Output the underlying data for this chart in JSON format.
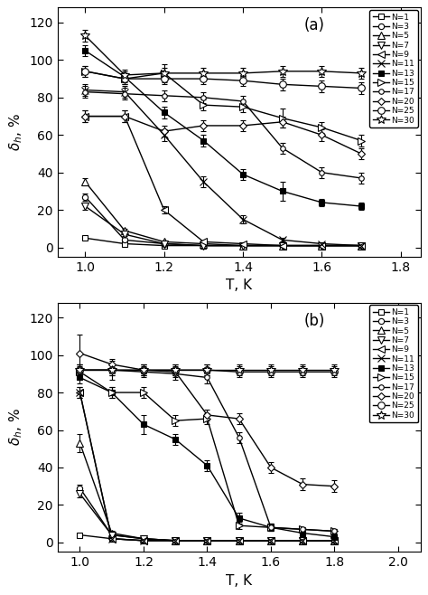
{
  "panel_a": {
    "label": "(a)",
    "xlim": [
      0.93,
      1.85
    ],
    "ylim": [
      -5,
      128
    ],
    "xticks": [
      1.0,
      1.2,
      1.4,
      1.6,
      1.8
    ],
    "yticks": [
      0,
      20,
      40,
      60,
      80,
      100,
      120
    ],
    "series": [
      {
        "N": 1,
        "marker": "s",
        "filled": false,
        "T": [
          1.0,
          1.1,
          1.2,
          1.3,
          1.4,
          1.5,
          1.6,
          1.7
        ],
        "val": [
          5,
          2,
          1,
          1,
          1,
          1,
          1,
          1
        ],
        "err": [
          0.5,
          0.3,
          0.3,
          0.3,
          0.3,
          0.3,
          0.3,
          0.3
        ]
      },
      {
        "N": 3,
        "marker": "o",
        "filled": false,
        "T": [
          1.0,
          1.1,
          1.2,
          1.3,
          1.4,
          1.5,
          1.6,
          1.7
        ],
        "val": [
          27,
          4,
          2,
          1,
          1,
          1,
          1,
          1
        ],
        "err": [
          2,
          0.5,
          0.3,
          0.3,
          0.3,
          0.3,
          0.3,
          0.3
        ]
      },
      {
        "N": 5,
        "marker": "^",
        "filled": false,
        "T": [
          1.0,
          1.1,
          1.2,
          1.3,
          1.4,
          1.5,
          1.6,
          1.7
        ],
        "val": [
          35,
          9,
          3,
          2,
          1,
          1,
          1,
          1
        ],
        "err": [
          2,
          1,
          0.5,
          0.3,
          0.3,
          0.3,
          0.3,
          0.3
        ]
      },
      {
        "N": 7,
        "marker": "v",
        "filled": false,
        "T": [
          1.0,
          1.1,
          1.2,
          1.3,
          1.4,
          1.5,
          1.6,
          1.7
        ],
        "val": [
          22,
          7,
          2,
          1,
          1,
          1,
          1,
          1
        ],
        "err": [
          2,
          1,
          0.3,
          0.3,
          0.3,
          0.3,
          0.3,
          0.3
        ]
      },
      {
        "N": 9,
        "marker": "<",
        "filled": false,
        "T": [
          1.0,
          1.1,
          1.2,
          1.3,
          1.4,
          1.5,
          1.6,
          1.7
        ],
        "val": [
          70,
          70,
          20,
          3,
          2,
          1,
          1,
          1
        ],
        "err": [
          3,
          3,
          2,
          0.5,
          0.3,
          0.3,
          0.3,
          0.3
        ]
      },
      {
        "N": 11,
        "marker": "x",
        "filled": false,
        "T": [
          1.0,
          1.1,
          1.2,
          1.3,
          1.4,
          1.5,
          1.6,
          1.7
        ],
        "val": [
          84,
          83,
          60,
          35,
          15,
          4,
          2,
          1
        ],
        "err": [
          3,
          3,
          3,
          3,
          2,
          1,
          0.5,
          0.3
        ]
      },
      {
        "N": 13,
        "marker": "s",
        "filled": true,
        "T": [
          1.0,
          1.1,
          1.2,
          1.3,
          1.4,
          1.5,
          1.6,
          1.7
        ],
        "val": [
          105,
          91,
          72,
          57,
          39,
          30,
          24,
          22
        ],
        "err": [
          3,
          3,
          3,
          3,
          3,
          5,
          2,
          2
        ]
      },
      {
        "N": 15,
        "marker": ">",
        "filled": false,
        "T": [
          1.0,
          1.1,
          1.2,
          1.3,
          1.4,
          1.5,
          1.6,
          1.7
        ],
        "val": [
          94,
          90,
          93,
          76,
          75,
          69,
          64,
          57
        ],
        "err": [
          3,
          3,
          5,
          3,
          3,
          5,
          3,
          3
        ]
      },
      {
        "N": 17,
        "marker": "o",
        "filled": false,
        "T": [
          1.0,
          1.1,
          1.2,
          1.3,
          1.4,
          1.5,
          1.6,
          1.7
        ],
        "val": [
          83,
          82,
          81,
          80,
          78,
          53,
          40,
          37
        ],
        "err": [
          3,
          3,
          3,
          3,
          3,
          3,
          3,
          3
        ]
      },
      {
        "N": 20,
        "marker": "D",
        "filled": false,
        "T": [
          1.0,
          1.1,
          1.2,
          1.3,
          1.4,
          1.5,
          1.6,
          1.7
        ],
        "val": [
          70,
          70,
          62,
          65,
          65,
          67,
          60,
          50
        ],
        "err": [
          3,
          3,
          3,
          3,
          3,
          3,
          3,
          3
        ]
      },
      {
        "N": 25,
        "marker": "o",
        "filled": false,
        "T": [
          1.0,
          1.1,
          1.2,
          1.3,
          1.4,
          1.5,
          1.6,
          1.7
        ],
        "val": [
          94,
          90,
          90,
          90,
          89,
          87,
          86,
          85
        ],
        "err": [
          3,
          3,
          3,
          3,
          3,
          3,
          3,
          3
        ]
      },
      {
        "N": 30,
        "marker": "*",
        "filled": false,
        "T": [
          1.0,
          1.1,
          1.2,
          1.3,
          1.4,
          1.5,
          1.6,
          1.7
        ],
        "val": [
          113,
          92,
          93,
          93,
          93,
          94,
          94,
          93
        ],
        "err": [
          3,
          3,
          3,
          3,
          3,
          3,
          3,
          3
        ]
      }
    ]
  },
  "panel_b": {
    "label": "(b)",
    "xlim": [
      0.93,
      2.07
    ],
    "ylim": [
      -5,
      128
    ],
    "xticks": [
      1.0,
      1.2,
      1.4,
      1.6,
      1.8,
      2.0
    ],
    "yticks": [
      0,
      20,
      40,
      60,
      80,
      100,
      120
    ],
    "series": [
      {
        "N": 1,
        "marker": "s",
        "filled": false,
        "T": [
          1.0,
          1.1,
          1.2,
          1.3,
          1.4,
          1.5,
          1.6,
          1.7,
          1.8
        ],
        "val": [
          4,
          2,
          1,
          1,
          1,
          1,
          1,
          1,
          1
        ],
        "err": [
          0.5,
          0.3,
          0.3,
          0.3,
          0.3,
          0.3,
          0.3,
          0.3,
          0.3
        ]
      },
      {
        "N": 3,
        "marker": "o",
        "filled": false,
        "T": [
          1.0,
          1.1,
          1.2,
          1.3,
          1.4,
          1.5,
          1.6,
          1.7,
          1.8
        ],
        "val": [
          29,
          4,
          2,
          1,
          1,
          1,
          1,
          1,
          1
        ],
        "err": [
          2,
          1,
          0.3,
          0.3,
          0.3,
          0.3,
          0.3,
          0.3,
          0.3
        ]
      },
      {
        "N": 5,
        "marker": "^",
        "filled": false,
        "T": [
          1.0,
          1.1,
          1.2,
          1.3,
          1.4,
          1.5,
          1.6,
          1.7,
          1.8
        ],
        "val": [
          53,
          5,
          2,
          1,
          1,
          1,
          1,
          1,
          1
        ],
        "err": [
          5,
          1,
          0.3,
          0.3,
          0.3,
          0.3,
          0.3,
          0.3,
          0.3
        ]
      },
      {
        "N": 7,
        "marker": "v",
        "filled": false,
        "T": [
          1.0,
          1.1,
          1.2,
          1.3,
          1.4,
          1.5,
          1.6,
          1.7,
          1.8
        ],
        "val": [
          26,
          4,
          2,
          1,
          1,
          1,
          1,
          1,
          1
        ],
        "err": [
          2,
          1,
          0.3,
          0.3,
          0.3,
          0.3,
          0.3,
          0.3,
          0.3
        ]
      },
      {
        "N": 9,
        "marker": "<",
        "filled": false,
        "T": [
          1.0,
          1.1,
          1.2,
          1.3,
          1.4,
          1.5,
          1.6,
          1.7,
          1.8
        ],
        "val": [
          80,
          2,
          1,
          1,
          1,
          1,
          1,
          1,
          1
        ],
        "err": [
          3,
          0.5,
          0.3,
          0.3,
          0.3,
          0.3,
          0.3,
          0.3,
          0.3
        ]
      },
      {
        "N": 11,
        "marker": "x",
        "filled": false,
        "T": [
          1.0,
          1.1,
          1.2,
          1.3,
          1.4,
          1.5,
          1.6,
          1.7,
          1.8
        ],
        "val": [
          80,
          2,
          1,
          1,
          1,
          1,
          1,
          1,
          1
        ],
        "err": [
          3,
          0.5,
          0.3,
          0.3,
          0.3,
          0.3,
          0.3,
          0.3,
          0.3
        ]
      },
      {
        "N": 13,
        "marker": "s",
        "filled": true,
        "T": [
          1.0,
          1.1,
          1.2,
          1.3,
          1.4,
          1.5,
          1.6,
          1.7,
          1.8
        ],
        "val": [
          88,
          80,
          63,
          55,
          41,
          13,
          8,
          5,
          3
        ],
        "err": [
          3,
          3,
          5,
          3,
          3,
          3,
          2,
          1,
          0.5
        ]
      },
      {
        "N": 15,
        "marker": ">",
        "filled": false,
        "T": [
          1.0,
          1.1,
          1.2,
          1.3,
          1.4,
          1.5,
          1.6,
          1.7,
          1.8
        ],
        "val": [
          91,
          80,
          80,
          65,
          66,
          9,
          8,
          7,
          6
        ],
        "err": [
          3,
          3,
          3,
          3,
          3,
          2,
          2,
          1,
          1
        ]
      },
      {
        "N": 17,
        "marker": "o",
        "filled": false,
        "T": [
          1.0,
          1.1,
          1.2,
          1.3,
          1.4,
          1.5,
          1.6,
          1.7,
          1.8
        ],
        "val": [
          92,
          92,
          91,
          90,
          88,
          56,
          8,
          7,
          6
        ],
        "err": [
          3,
          5,
          3,
          3,
          3,
          3,
          2,
          1,
          1
        ]
      },
      {
        "N": 20,
        "marker": "D",
        "filled": false,
        "T": [
          1.0,
          1.1,
          1.2,
          1.3,
          1.4,
          1.5,
          1.6,
          1.7,
          1.8
        ],
        "val": [
          101,
          95,
          92,
          91,
          68,
          66,
          40,
          31,
          30
        ],
        "err": [
          10,
          3,
          3,
          3,
          3,
          3,
          3,
          3,
          3
        ]
      },
      {
        "N": 25,
        "marker": "o",
        "filled": false,
        "T": [
          1.0,
          1.1,
          1.2,
          1.3,
          1.4,
          1.5,
          1.6,
          1.7,
          1.8
        ],
        "val": [
          92,
          92,
          92,
          92,
          92,
          91,
          91,
          91,
          91
        ],
        "err": [
          3,
          3,
          3,
          3,
          3,
          3,
          3,
          3,
          3
        ]
      },
      {
        "N": 30,
        "marker": "*",
        "filled": false,
        "T": [
          1.0,
          1.1,
          1.2,
          1.3,
          1.4,
          1.5,
          1.6,
          1.7,
          1.8
        ],
        "val": [
          92,
          92,
          92,
          92,
          92,
          92,
          92,
          92,
          92
        ],
        "err": [
          3,
          3,
          3,
          3,
          3,
          3,
          3,
          3,
          3
        ]
      }
    ]
  },
  "ylabel": "$\\delta_h$, %",
  "xlabel": "T, K"
}
